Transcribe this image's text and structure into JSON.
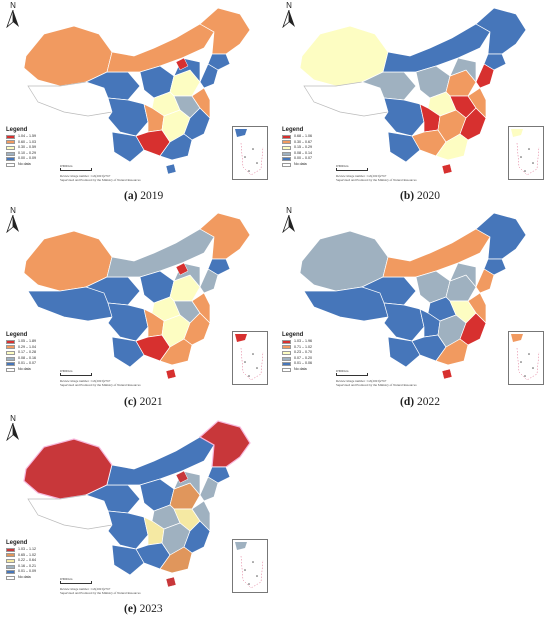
{
  "panels": [
    {
      "id": "a",
      "letter": "(a)",
      "year": "2019",
      "legend": [
        "1.04 – 1.59",
        "0.60 – 1.03",
        "0.30 – 0.59",
        "0.10 – 0.29",
        "0.00 – 0.09"
      ],
      "colors": [
        "#d7302f",
        "#f19a60",
        "#fdfdc2",
        "#9fb1c0",
        "#4676ba"
      ]
    },
    {
      "id": "b",
      "letter": "(b)",
      "year": "2020",
      "legend": [
        "0.68 – 1.06",
        "0.30 – 0.67",
        "0.15 – 0.29",
        "0.08 – 0.14",
        "0.00 – 0.07"
      ],
      "colors": [
        "#d7302f",
        "#f19a60",
        "#fdfdc2",
        "#9fb1c0",
        "#4676ba"
      ]
    },
    {
      "id": "c",
      "letter": "(c)",
      "year": "2021",
      "legend": [
        "1.05 – 1.89",
        "0.29 – 1.04",
        "0.17 – 0.28",
        "0.08 – 0.16",
        "0.01 – 0.07"
      ],
      "colors": [
        "#d7302f",
        "#f19a60",
        "#fdfdc2",
        "#9fb1c0",
        "#4676ba"
      ]
    },
    {
      "id": "d",
      "letter": "(d)",
      "year": "2022",
      "legend": [
        "1.03 – 1.96",
        "0.71 – 1.02",
        "0.23 – 0.70",
        "0.07 – 0.20",
        "0.01 – 0.06"
      ],
      "colors": [
        "#d7302f",
        "#f19a60",
        "#fdfdc2",
        "#9fb1c0",
        "#4676ba"
      ]
    },
    {
      "id": "e",
      "letter": "(e)",
      "year": "2023",
      "legend": [
        "1.03 – 1.12",
        "0.65 – 1.02",
        "0.22 – 0.64",
        "0.16 – 0.21",
        "0.01 – 0.09"
      ],
      "colors": [
        "#c8373a",
        "#e0965c",
        "#f5e9a3",
        "#9fb1c0",
        "#4676ba"
      ]
    }
  ],
  "legend_title": "Legend",
  "no_data_label": "No data",
  "north_label": "N",
  "scale_label": "0        500 km",
  "review_line1": "Review image number : GS(2023)2767",
  "review_line2": "Supervised and Produced by the Ministry of Natural Resources"
}
